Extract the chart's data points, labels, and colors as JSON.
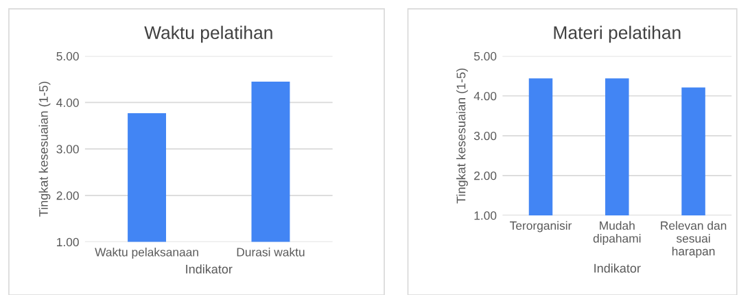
{
  "chart_data": [
    {
      "type": "bar",
      "title": "Waktu pelatihan",
      "xlabel": "Indikator",
      "ylabel": "Tingkat kesesuaian (1-5)",
      "categories": [
        "Waktu pelaksanaan",
        "Durasi waktu"
      ],
      "values": [
        3.77,
        4.45
      ],
      "color": "#4285f4",
      "ylim": [
        1,
        5
      ],
      "yticks": [
        {
          "value": 1,
          "label": "1.00"
        },
        {
          "value": 2,
          "label": "2.00"
        },
        {
          "value": 3,
          "label": "3.00"
        },
        {
          "value": 4,
          "label": "4.00"
        },
        {
          "value": 5,
          "label": "5.00"
        }
      ],
      "grid": "y",
      "legend": false
    },
    {
      "type": "bar",
      "title": "Materi pelatihan",
      "xlabel": "Indikator",
      "ylabel": "Tingkat kesesuaian (1-5)",
      "categories": [
        "Terorganisir",
        "Mudah\ndipahami",
        "Relevan dan\nsesuai\nharapan"
      ],
      "values": [
        4.44,
        4.44,
        4.21
      ],
      "color": "#4285f4",
      "ylim": [
        1,
        5
      ],
      "yticks": [
        {
          "value": 1,
          "label": "1.00"
        },
        {
          "value": 2,
          "label": "2.00"
        },
        {
          "value": 3,
          "label": "3.00"
        },
        {
          "value": 4,
          "label": "4.00"
        },
        {
          "value": 5,
          "label": "5.00"
        }
      ],
      "grid": "y",
      "legend": false
    }
  ]
}
